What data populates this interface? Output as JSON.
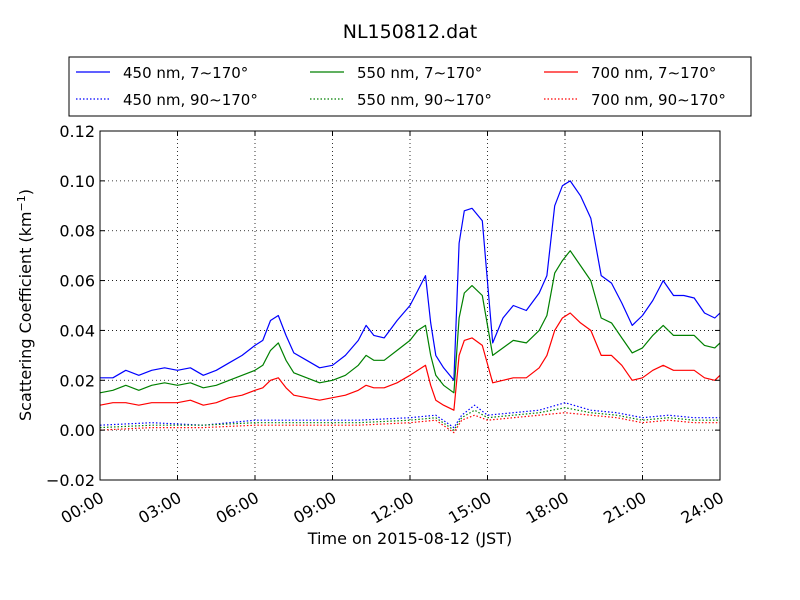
{
  "chart_data": {
    "type": "line",
    "title": "NL150812.dat",
    "xlabel": "Time on 2015-08-12 (JST)",
    "ylabel": "Scattering Coefficient (km",
    "ylabel_sup": "−1",
    "ylabel_tail": ")",
    "xlim": [
      0,
      24
    ],
    "ylim": [
      -0.02,
      0.12
    ],
    "x_ticks": [
      0,
      3,
      6,
      9,
      12,
      15,
      18,
      21,
      24
    ],
    "x_tick_labels": [
      "00:00",
      "03:00",
      "06:00",
      "09:00",
      "12:00",
      "15:00",
      "18:00",
      "21:00",
      "24:00"
    ],
    "y_ticks": [
      -0.02,
      0.0,
      0.02,
      0.04,
      0.06,
      0.08,
      0.1,
      0.12
    ],
    "y_tick_labels": [
      "−0.02",
      "0.00",
      "0.02",
      "0.04",
      "0.06",
      "0.08",
      "0.10",
      "0.12"
    ],
    "grid": true,
    "legend_position": "top",
    "series": [
      {
        "name": "450 nm, 7∼170°",
        "color": "#0000ff",
        "style": "solid",
        "x": [
          0,
          0.5,
          1,
          1.5,
          2,
          2.5,
          3,
          3.5,
          4,
          4.5,
          5,
          5.5,
          6,
          6.3,
          6.6,
          6.9,
          7.2,
          7.5,
          8,
          8.5,
          9,
          9.5,
          10,
          10.3,
          10.6,
          11,
          11.5,
          12,
          12.3,
          12.6,
          12.8,
          13,
          13.3,
          13.7,
          13.9,
          14.1,
          14.4,
          14.8,
          15.2,
          15.6,
          16,
          16.5,
          17,
          17.3,
          17.6,
          17.9,
          18.2,
          18.6,
          19,
          19.4,
          19.8,
          20.2,
          20.6,
          21,
          21.4,
          21.8,
          22.2,
          22.6,
          23,
          23.4,
          23.8,
          24
        ],
        "y": [
          0.021,
          0.021,
          0.024,
          0.022,
          0.024,
          0.025,
          0.024,
          0.025,
          0.022,
          0.024,
          0.027,
          0.03,
          0.034,
          0.036,
          0.044,
          0.046,
          0.038,
          0.031,
          0.028,
          0.025,
          0.026,
          0.03,
          0.036,
          0.042,
          0.038,
          0.037,
          0.044,
          0.05,
          0.056,
          0.062,
          0.043,
          0.03,
          0.025,
          0.02,
          0.075,
          0.088,
          0.089,
          0.084,
          0.035,
          0.045,
          0.05,
          0.048,
          0.055,
          0.062,
          0.09,
          0.098,
          0.1,
          0.094,
          0.085,
          0.062,
          0.059,
          0.051,
          0.042,
          0.046,
          0.052,
          0.06,
          0.054,
          0.054,
          0.053,
          0.047,
          0.045,
          0.047
        ]
      },
      {
        "name": "450 nm, 90∼170°",
        "color": "#0000ff",
        "style": "dotted",
        "x": [
          0,
          2,
          4,
          6,
          8,
          10,
          12,
          13,
          13.7,
          14,
          14.5,
          15,
          16,
          17,
          18,
          19,
          20,
          21,
          22,
          23,
          24
        ],
        "y": [
          0.002,
          0.003,
          0.002,
          0.004,
          0.004,
          0.004,
          0.005,
          0.006,
          0.001,
          0.006,
          0.01,
          0.006,
          0.007,
          0.008,
          0.011,
          0.008,
          0.007,
          0.005,
          0.006,
          0.005,
          0.005
        ]
      },
      {
        "name": "550 nm, 7∼170°",
        "color": "#008000",
        "style": "solid",
        "x": [
          0,
          0.5,
          1,
          1.5,
          2,
          2.5,
          3,
          3.5,
          4,
          4.5,
          5,
          5.5,
          6,
          6.3,
          6.6,
          6.9,
          7.2,
          7.5,
          8,
          8.5,
          9,
          9.5,
          10,
          10.3,
          10.6,
          11,
          11.5,
          12,
          12.3,
          12.6,
          12.8,
          13,
          13.3,
          13.7,
          13.9,
          14.1,
          14.4,
          14.8,
          15.2,
          15.6,
          16,
          16.5,
          17,
          17.3,
          17.6,
          17.9,
          18.2,
          18.6,
          19,
          19.4,
          19.8,
          20.2,
          20.6,
          21,
          21.4,
          21.8,
          22.2,
          22.6,
          23,
          23.4,
          23.8,
          24
        ],
        "y": [
          0.015,
          0.016,
          0.018,
          0.016,
          0.018,
          0.019,
          0.018,
          0.019,
          0.017,
          0.018,
          0.02,
          0.022,
          0.024,
          0.026,
          0.032,
          0.035,
          0.028,
          0.023,
          0.021,
          0.019,
          0.02,
          0.022,
          0.026,
          0.03,
          0.028,
          0.028,
          0.032,
          0.036,
          0.04,
          0.042,
          0.03,
          0.022,
          0.018,
          0.015,
          0.045,
          0.055,
          0.058,
          0.054,
          0.03,
          0.033,
          0.036,
          0.035,
          0.04,
          0.046,
          0.063,
          0.068,
          0.072,
          0.066,
          0.06,
          0.045,
          0.043,
          0.037,
          0.031,
          0.033,
          0.038,
          0.042,
          0.038,
          0.038,
          0.038,
          0.034,
          0.033,
          0.035
        ]
      },
      {
        "name": "550 nm, 90∼170°",
        "color": "#008000",
        "style": "dotted",
        "x": [
          0,
          2,
          4,
          6,
          8,
          10,
          12,
          13,
          13.7,
          14,
          14.5,
          15,
          16,
          17,
          18,
          19,
          20,
          21,
          22,
          23,
          24
        ],
        "y": [
          0.001,
          0.002,
          0.002,
          0.003,
          0.003,
          0.003,
          0.004,
          0.005,
          0.0,
          0.005,
          0.008,
          0.005,
          0.006,
          0.007,
          0.009,
          0.007,
          0.006,
          0.004,
          0.005,
          0.004,
          0.004
        ]
      },
      {
        "name": "700 nm, 7∼170°",
        "color": "#ff0000",
        "style": "solid",
        "x": [
          0,
          0.5,
          1,
          1.5,
          2,
          2.5,
          3,
          3.5,
          4,
          4.5,
          5,
          5.5,
          6,
          6.3,
          6.6,
          6.9,
          7.2,
          7.5,
          8,
          8.5,
          9,
          9.5,
          10,
          10.3,
          10.6,
          11,
          11.5,
          12,
          12.3,
          12.6,
          12.8,
          13,
          13.3,
          13.7,
          13.9,
          14.1,
          14.4,
          14.8,
          15.2,
          15.6,
          16,
          16.5,
          17,
          17.3,
          17.6,
          17.9,
          18.2,
          18.6,
          19,
          19.4,
          19.8,
          20.2,
          20.6,
          21,
          21.4,
          21.8,
          22.2,
          22.6,
          23,
          23.4,
          23.8,
          24
        ],
        "y": [
          0.01,
          0.011,
          0.011,
          0.01,
          0.011,
          0.011,
          0.011,
          0.012,
          0.01,
          0.011,
          0.013,
          0.014,
          0.016,
          0.017,
          0.02,
          0.021,
          0.017,
          0.014,
          0.013,
          0.012,
          0.013,
          0.014,
          0.016,
          0.018,
          0.017,
          0.017,
          0.019,
          0.022,
          0.024,
          0.026,
          0.018,
          0.012,
          0.01,
          0.008,
          0.03,
          0.036,
          0.037,
          0.034,
          0.019,
          0.02,
          0.021,
          0.021,
          0.025,
          0.03,
          0.04,
          0.045,
          0.047,
          0.043,
          0.04,
          0.03,
          0.03,
          0.026,
          0.02,
          0.021,
          0.024,
          0.026,
          0.024,
          0.024,
          0.024,
          0.021,
          0.02,
          0.022
        ]
      },
      {
        "name": "700 nm, 90∼170°",
        "color": "#ff0000",
        "style": "dotted",
        "x": [
          0,
          2,
          4,
          6,
          8,
          10,
          12,
          13,
          13.7,
          14,
          14.5,
          15,
          16,
          17,
          18,
          19,
          20,
          21,
          22,
          23,
          24
        ],
        "y": [
          0.0,
          0.001,
          0.001,
          0.002,
          0.002,
          0.002,
          0.003,
          0.004,
          -0.001,
          0.004,
          0.006,
          0.004,
          0.005,
          0.006,
          0.007,
          0.006,
          0.005,
          0.003,
          0.004,
          0.003,
          0.003
        ]
      }
    ]
  }
}
